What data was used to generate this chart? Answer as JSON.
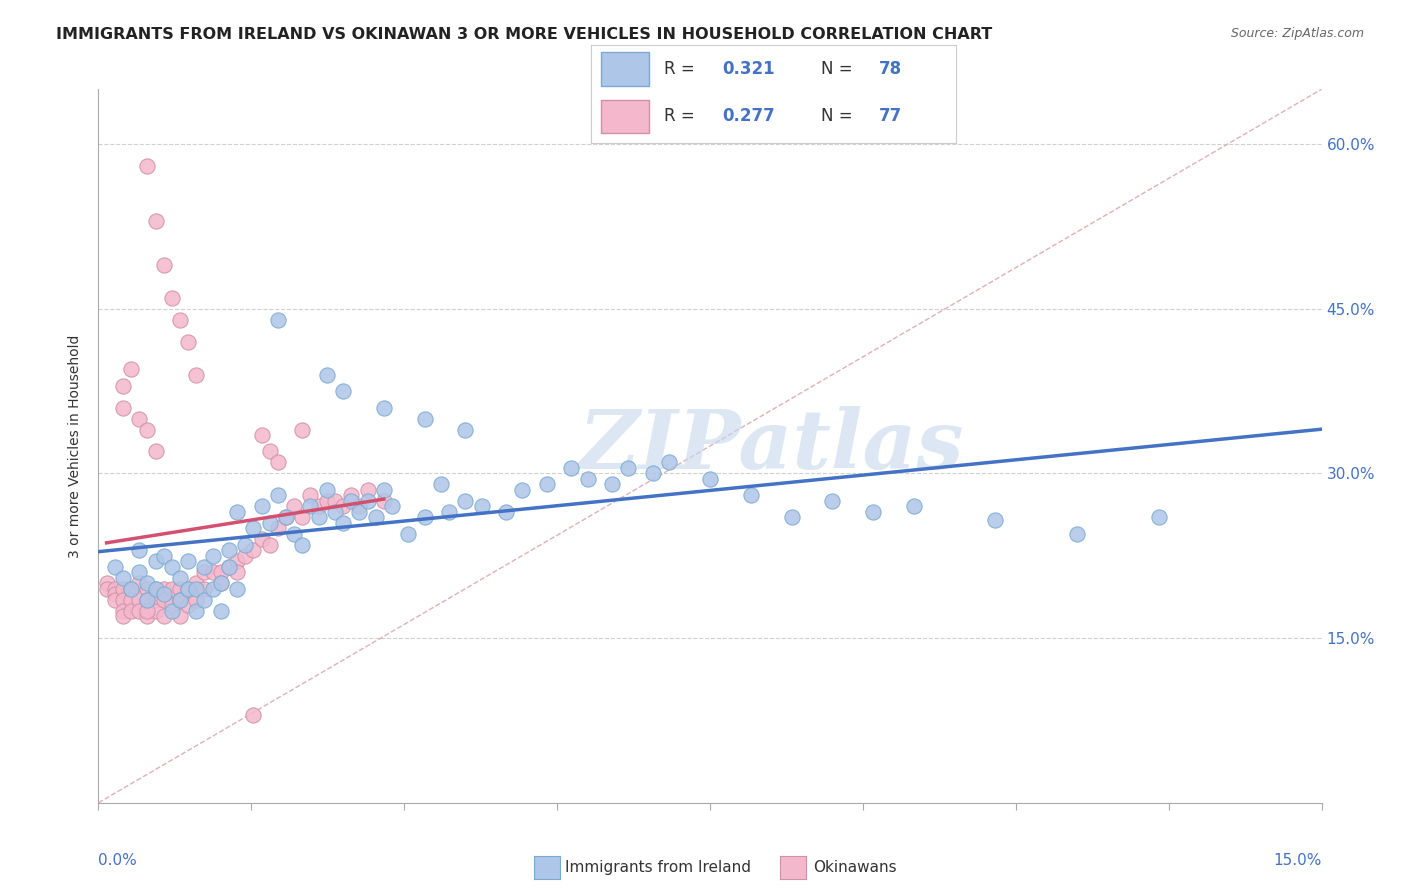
{
  "title": "IMMIGRANTS FROM IRELAND VS OKINAWAN 3 OR MORE VEHICLES IN HOUSEHOLD CORRELATION CHART",
  "source": "Source: ZipAtlas.com",
  "ylabel": "3 or more Vehicles in Household",
  "ytick_vals": [
    0.0,
    0.15,
    0.3,
    0.45,
    0.6
  ],
  "ytick_labels": [
    "",
    "15.0%",
    "30.0%",
    "45.0%",
    "60.0%"
  ],
  "xlim": [
    0.0,
    0.15
  ],
  "ylim": [
    0.0,
    0.65
  ],
  "legend_blue": {
    "label": "Immigrants from Ireland",
    "R": "0.321",
    "N": "78",
    "color": "#aec6e8"
  },
  "legend_pink": {
    "label": "Okinawans",
    "R": "0.277",
    "N": "77",
    "color": "#f4b8cc"
  },
  "blue_line_color": "#4472c4",
  "pink_line_color": "#d45070",
  "diagonal_color": "#e8a8b8",
  "watermark_color": "#c5d8ec",
  "watermark_text": "ZIPatlas",
  "background_color": "#ffffff",
  "title_fontsize": 11.5,
  "source_fontsize": 9,
  "scatter_blue_x": [
    0.002,
    0.003,
    0.004,
    0.005,
    0.005,
    0.006,
    0.006,
    0.007,
    0.007,
    0.008,
    0.008,
    0.009,
    0.009,
    0.01,
    0.01,
    0.011,
    0.011,
    0.012,
    0.012,
    0.013,
    0.013,
    0.014,
    0.014,
    0.015,
    0.015,
    0.016,
    0.016,
    0.017,
    0.017,
    0.018,
    0.019,
    0.02,
    0.021,
    0.022,
    0.023,
    0.024,
    0.025,
    0.026,
    0.027,
    0.028,
    0.029,
    0.03,
    0.031,
    0.032,
    0.033,
    0.034,
    0.035,
    0.036,
    0.038,
    0.04,
    0.042,
    0.043,
    0.045,
    0.047,
    0.05,
    0.052,
    0.055,
    0.058,
    0.06,
    0.063,
    0.065,
    0.068,
    0.07,
    0.075,
    0.08,
    0.085,
    0.09,
    0.095,
    0.1,
    0.11,
    0.12,
    0.13,
    0.022,
    0.028,
    0.03,
    0.035,
    0.04,
    0.045
  ],
  "scatter_blue_y": [
    0.215,
    0.205,
    0.195,
    0.23,
    0.21,
    0.2,
    0.185,
    0.22,
    0.195,
    0.225,
    0.19,
    0.215,
    0.175,
    0.205,
    0.185,
    0.22,
    0.195,
    0.195,
    0.175,
    0.215,
    0.185,
    0.225,
    0.195,
    0.2,
    0.175,
    0.215,
    0.23,
    0.195,
    0.265,
    0.235,
    0.25,
    0.27,
    0.255,
    0.28,
    0.26,
    0.245,
    0.235,
    0.27,
    0.26,
    0.285,
    0.265,
    0.255,
    0.275,
    0.265,
    0.275,
    0.26,
    0.285,
    0.27,
    0.245,
    0.26,
    0.29,
    0.265,
    0.275,
    0.27,
    0.265,
    0.285,
    0.29,
    0.305,
    0.295,
    0.29,
    0.305,
    0.3,
    0.31,
    0.295,
    0.28,
    0.26,
    0.275,
    0.265,
    0.27,
    0.258,
    0.245,
    0.26,
    0.44,
    0.39,
    0.375,
    0.36,
    0.35,
    0.34
  ],
  "scatter_pink_x": [
    0.001,
    0.001,
    0.002,
    0.002,
    0.002,
    0.003,
    0.003,
    0.003,
    0.003,
    0.004,
    0.004,
    0.004,
    0.005,
    0.005,
    0.005,
    0.006,
    0.006,
    0.006,
    0.007,
    0.007,
    0.007,
    0.008,
    0.008,
    0.008,
    0.009,
    0.009,
    0.01,
    0.01,
    0.01,
    0.011,
    0.011,
    0.012,
    0.012,
    0.013,
    0.013,
    0.014,
    0.015,
    0.015,
    0.016,
    0.017,
    0.017,
    0.018,
    0.019,
    0.02,
    0.021,
    0.022,
    0.023,
    0.024,
    0.025,
    0.026,
    0.027,
    0.028,
    0.029,
    0.03,
    0.031,
    0.032,
    0.033,
    0.035,
    0.003,
    0.003,
    0.004,
    0.005,
    0.006,
    0.007,
    0.025,
    0.006,
    0.007,
    0.008,
    0.009,
    0.01,
    0.011,
    0.012,
    0.02,
    0.021,
    0.022,
    0.006,
    0.019
  ],
  "scatter_pink_y": [
    0.2,
    0.195,
    0.195,
    0.19,
    0.185,
    0.195,
    0.185,
    0.175,
    0.17,
    0.195,
    0.185,
    0.175,
    0.2,
    0.185,
    0.175,
    0.195,
    0.185,
    0.17,
    0.195,
    0.185,
    0.175,
    0.195,
    0.185,
    0.17,
    0.195,
    0.18,
    0.195,
    0.185,
    0.17,
    0.195,
    0.18,
    0.2,
    0.185,
    0.21,
    0.195,
    0.21,
    0.21,
    0.2,
    0.215,
    0.22,
    0.21,
    0.225,
    0.23,
    0.24,
    0.235,
    0.25,
    0.26,
    0.27,
    0.26,
    0.28,
    0.27,
    0.275,
    0.275,
    0.27,
    0.28,
    0.27,
    0.285,
    0.275,
    0.38,
    0.36,
    0.395,
    0.35,
    0.34,
    0.32,
    0.34,
    0.58,
    0.53,
    0.49,
    0.46,
    0.44,
    0.42,
    0.39,
    0.335,
    0.32,
    0.31,
    0.175,
    0.08
  ]
}
